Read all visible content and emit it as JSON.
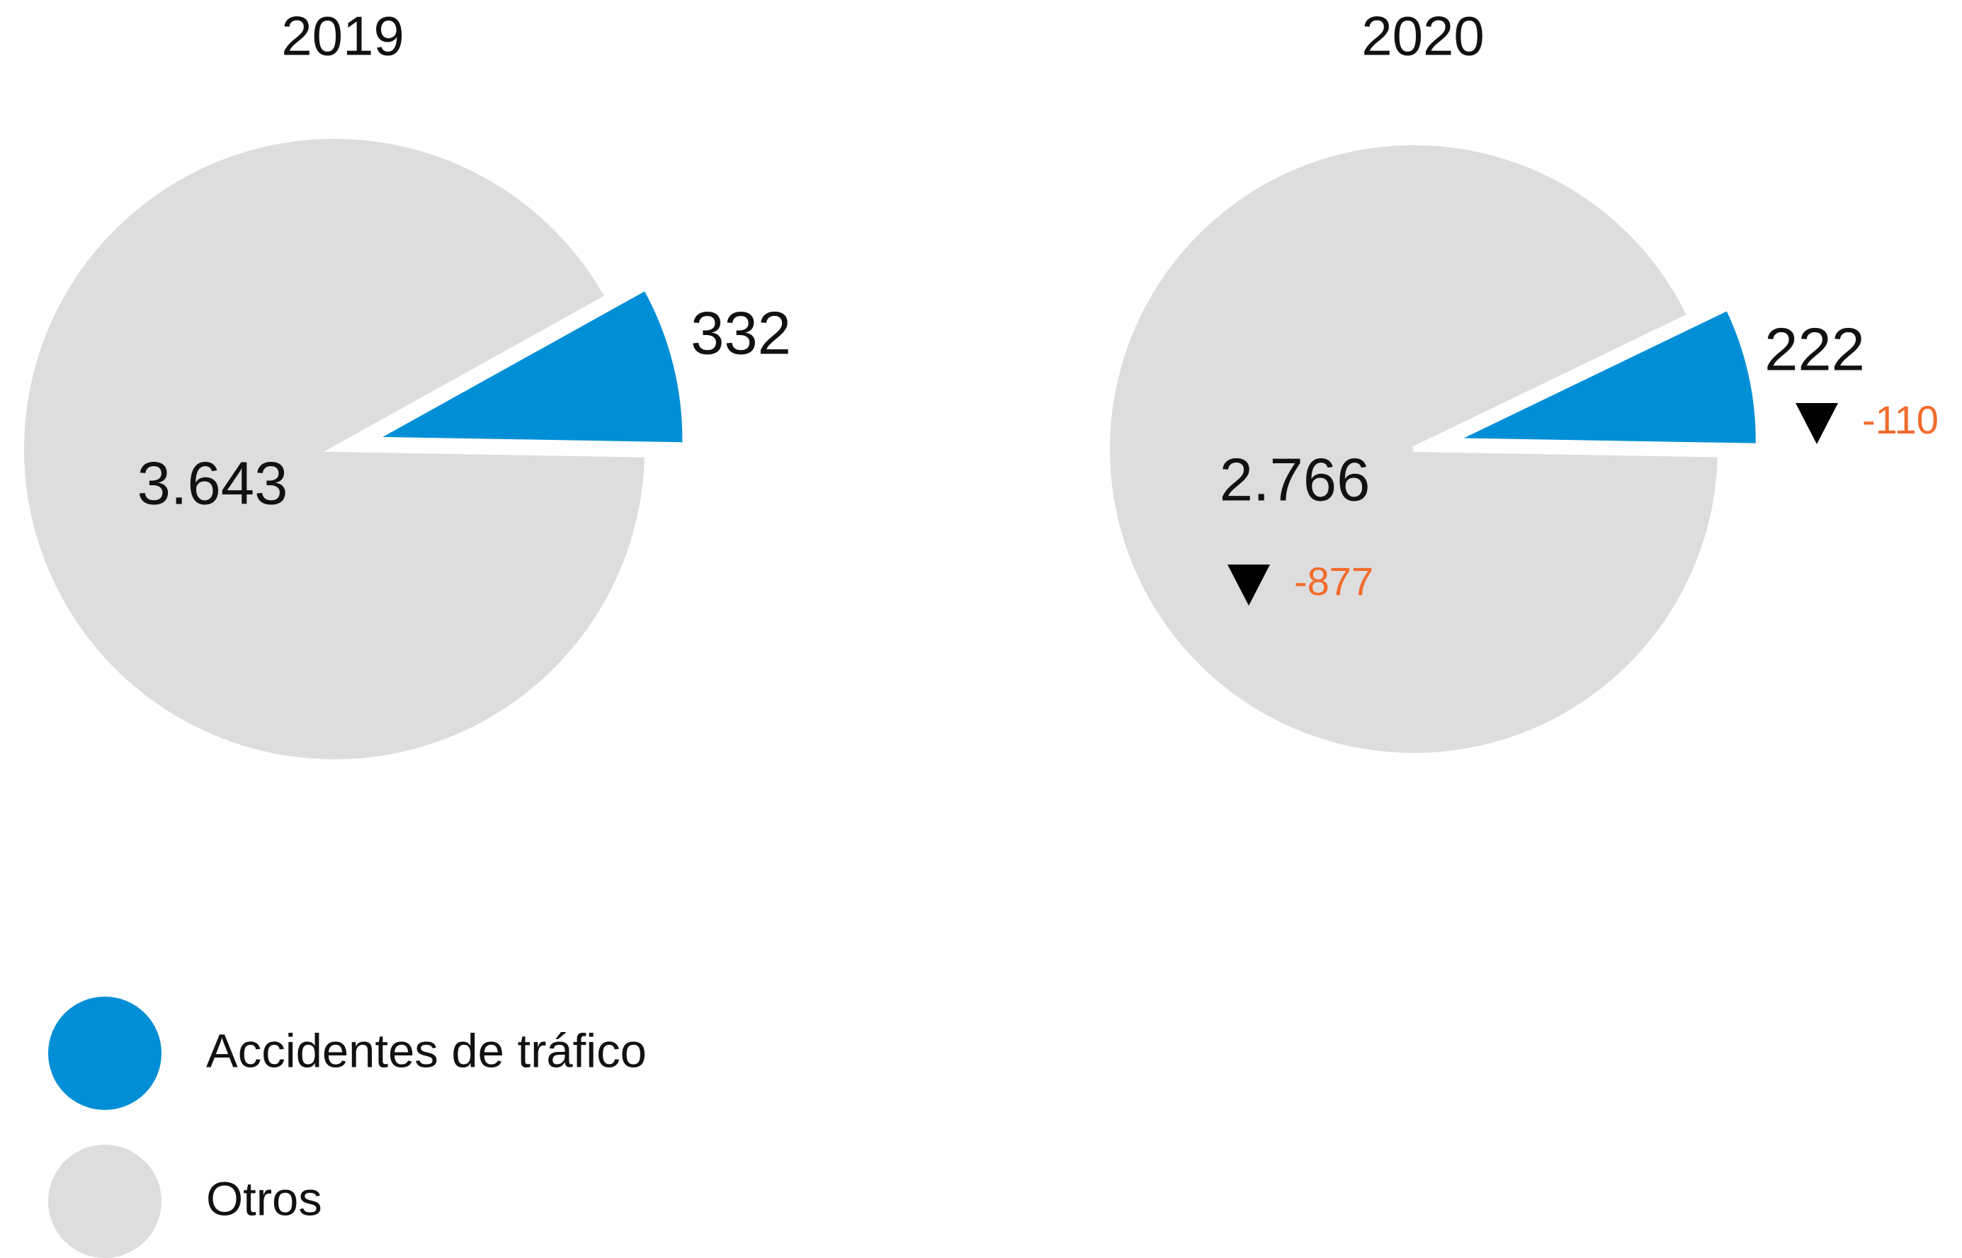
{
  "chart_data": [
    {
      "type": "pie",
      "title": "2019",
      "categories": [
        "Accidentes de tráfico",
        "Otros"
      ],
      "values": [
        332,
        3643
      ],
      "value_labels": [
        "332",
        "3.643"
      ],
      "colors": [
        "#008fd7",
        "#dddddd"
      ]
    },
    {
      "type": "pie",
      "title": "2020",
      "categories": [
        "Accidentes de tráfico",
        "Otros"
      ],
      "values": [
        222,
        2766
      ],
      "value_labels": [
        "222",
        "2.766"
      ],
      "changes": [
        -110,
        -877
      ],
      "colors": [
        "#008fd7",
        "#dddddd"
      ]
    }
  ]
}
